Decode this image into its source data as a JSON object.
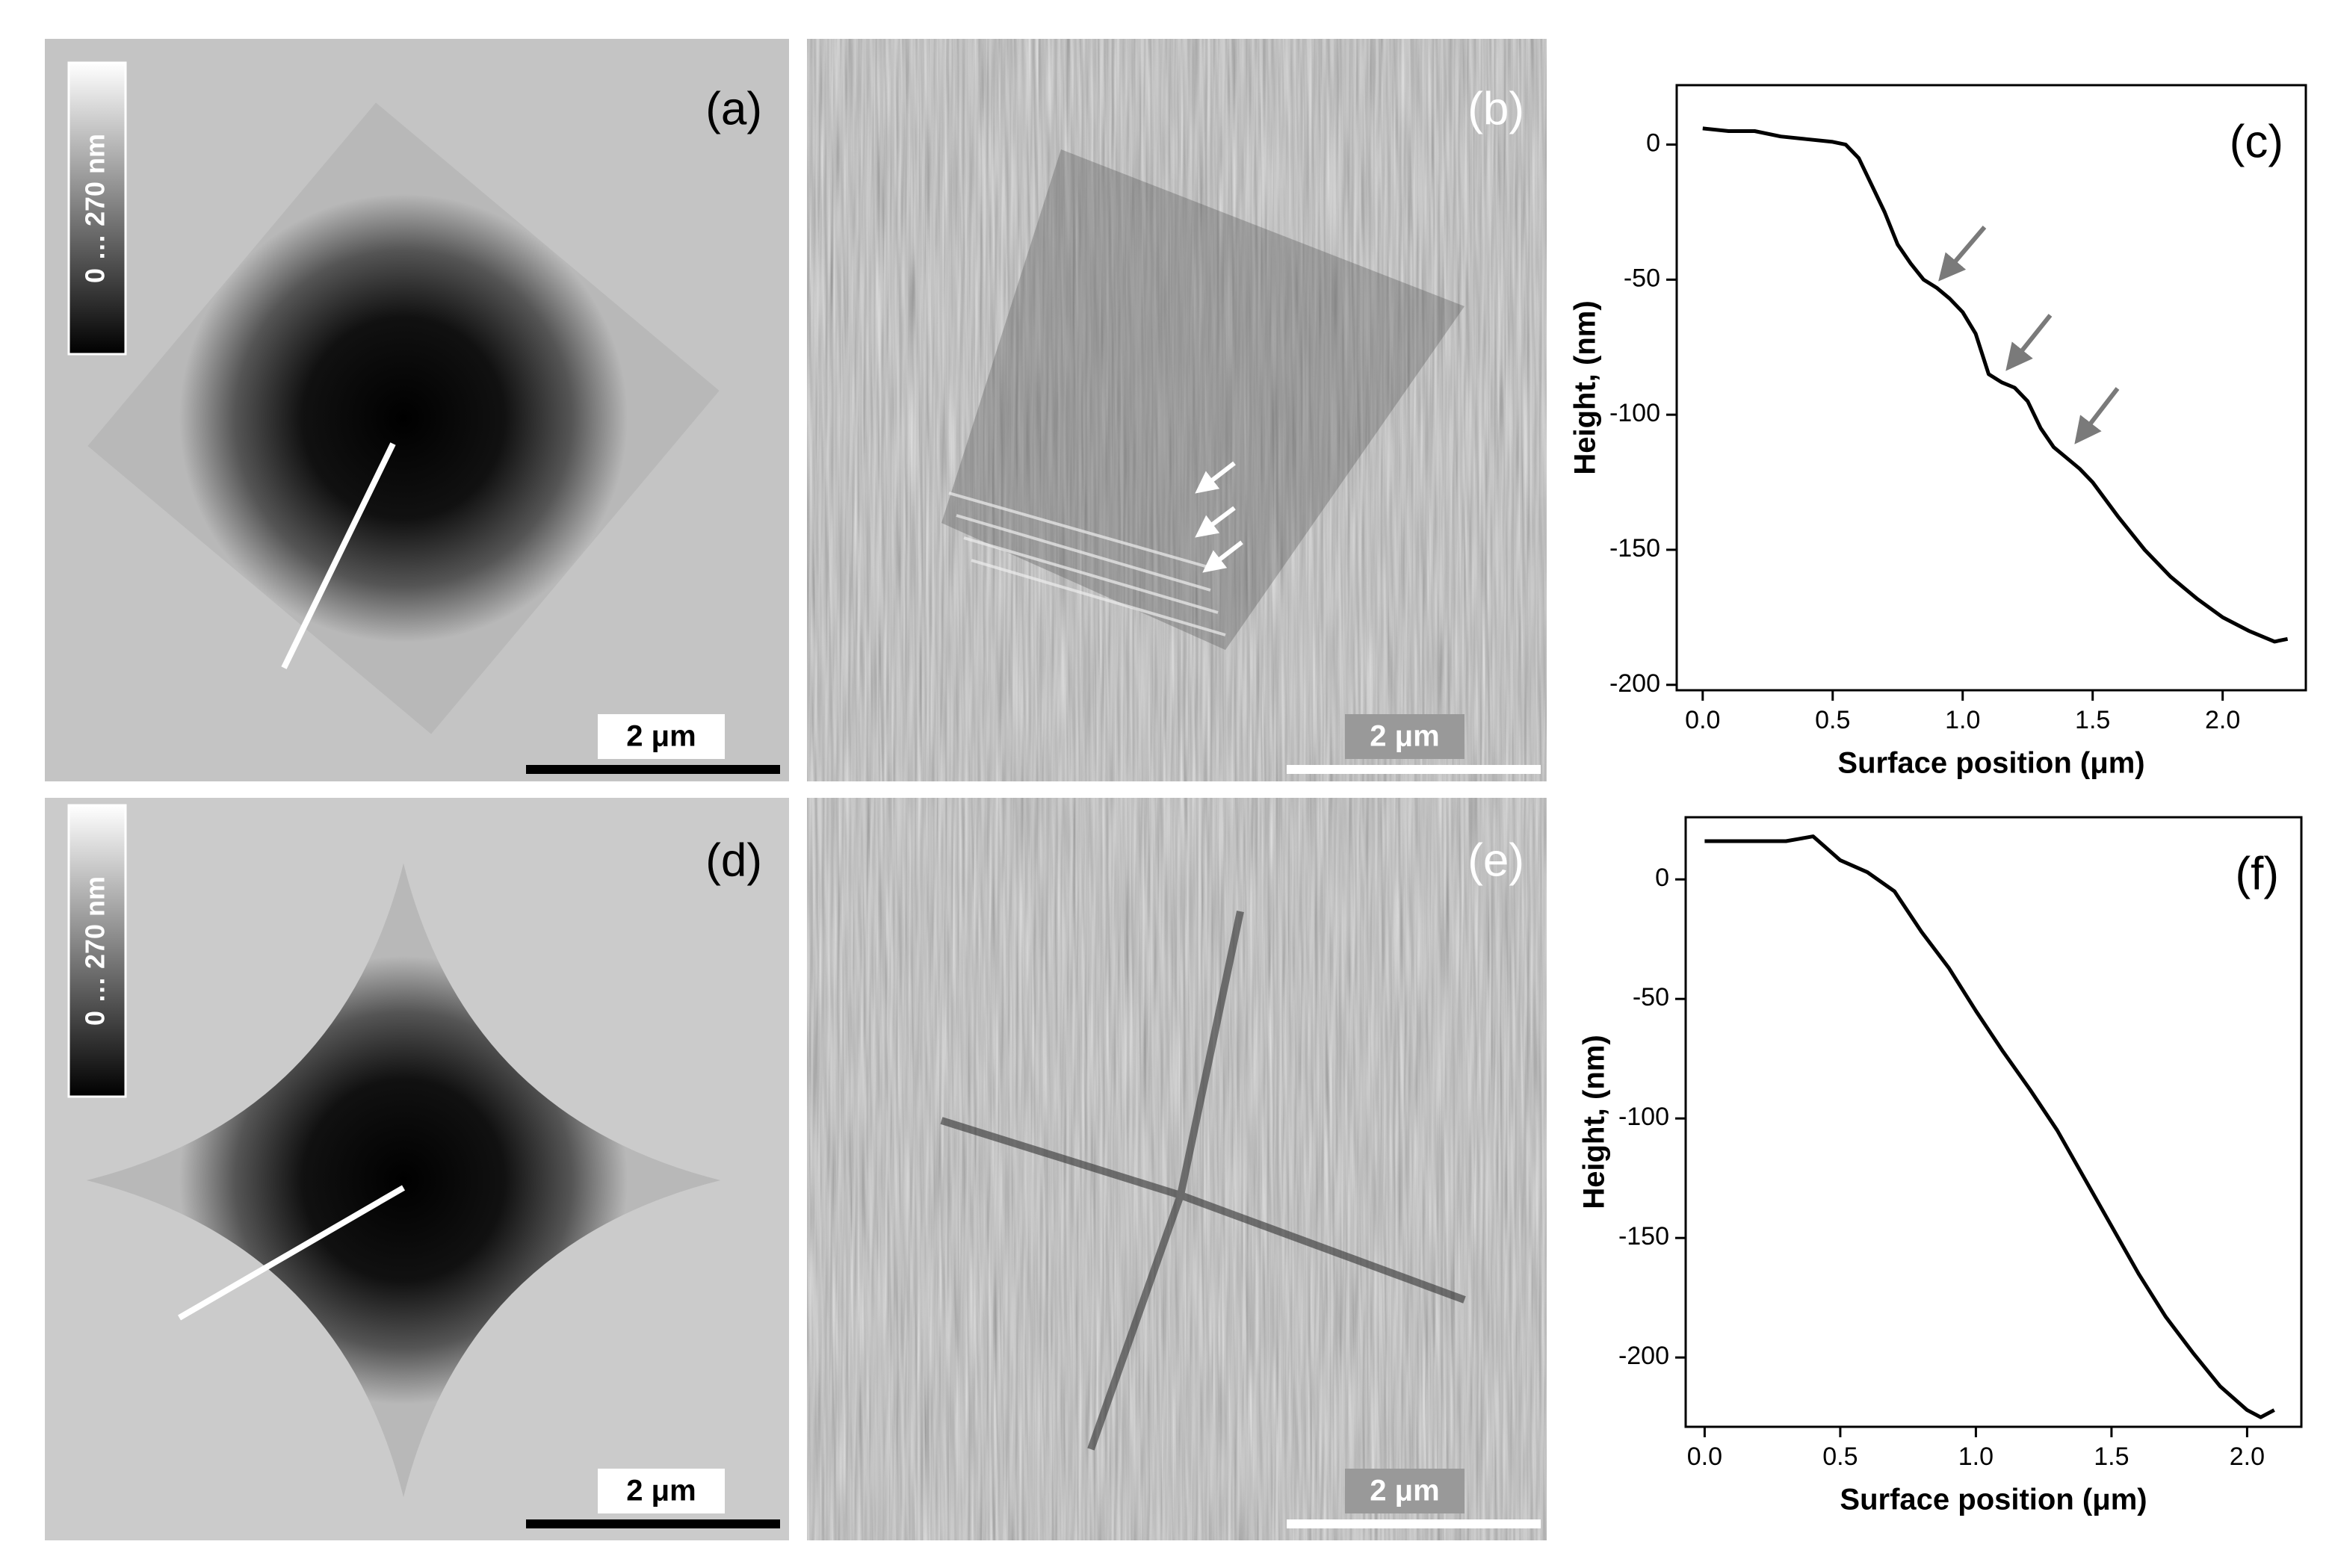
{
  "panels": [
    {
      "label": "(a)",
      "colorbar": "0 … 270 nm",
      "scalebar": "2 μm"
    },
    {
      "label": "(b)",
      "scalebar": "2 μm"
    },
    {
      "label": "(d)",
      "colorbar": "0 … 270 nm",
      "scalebar": "2 μm"
    },
    {
      "label": "(e)",
      "scalebar": "2 μm"
    }
  ],
  "chart_data": [
    {
      "type": "line",
      "label": "(c)",
      "x_label": "Surface position (μm)",
      "y_label": "Height, (nm)",
      "color": "#000000",
      "x": [
        0,
        0.1,
        0.2,
        0.3,
        0.4,
        0.5,
        0.55,
        0.6,
        0.65,
        0.7,
        0.75,
        0.8,
        0.85,
        0.9,
        0.95,
        1.0,
        1.05,
        1.1,
        1.15,
        1.2,
        1.25,
        1.3,
        1.35,
        1.4,
        1.45,
        1.5,
        1.6,
        1.7,
        1.8,
        1.9,
        2.0,
        2.1,
        2.2,
        2.25
      ],
      "values": [
        6,
        5,
        5,
        3,
        2,
        1,
        0,
        -5,
        -15,
        -25,
        -37,
        -44,
        -50,
        -53,
        -57,
        -62,
        -70,
        -85,
        -88,
        -90,
        -95,
        -105,
        -112,
        -116,
        -120,
        -125,
        -138,
        -150,
        -160,
        -168,
        -175,
        -180,
        -184,
        -183
      ],
      "xlim": [
        -0.1,
        2.32
      ],
      "ylim": [
        -202,
        22
      ],
      "xticks": [
        {
          "value": 0,
          "label": "0.0"
        },
        0.5,
        {
          "value": 1,
          "label": "1.0"
        },
        1.5,
        {
          "value": 2,
          "label": "2.0"
        }
      ],
      "yticks": [
        0,
        -50,
        -100,
        -150,
        -200
      ]
    },
    {
      "type": "line",
      "label": "(f)",
      "x_label": "Surface position (μm)",
      "y_label": "Height, (nm)",
      "color": "#000000",
      "x": [
        0,
        0.1,
        0.2,
        0.3,
        0.35,
        0.4,
        0.45,
        0.5,
        0.6,
        0.7,
        0.8,
        0.9,
        1.0,
        1.1,
        1.2,
        1.3,
        1.4,
        1.5,
        1.6,
        1.7,
        1.8,
        1.9,
        2.0,
        2.05,
        2.1
      ],
      "values": [
        16,
        16,
        16,
        16,
        17,
        18,
        13,
        8,
        3,
        -5,
        -22,
        -37,
        -55,
        -72,
        -88,
        -105,
        -125,
        -145,
        -165,
        -183,
        -198,
        -212,
        -222,
        -225,
        -222
      ],
      "xlim": [
        -0.07,
        2.2
      ],
      "ylim": [
        -229,
        26
      ],
      "xticks": [
        {
          "value": 0,
          "label": "0.0"
        },
        0.5,
        {
          "value": 1,
          "label": "1.0"
        },
        1.5,
        {
          "value": 2,
          "label": "2.0"
        }
      ],
      "yticks": [
        0,
        -50,
        -100,
        -150,
        -200
      ]
    }
  ]
}
